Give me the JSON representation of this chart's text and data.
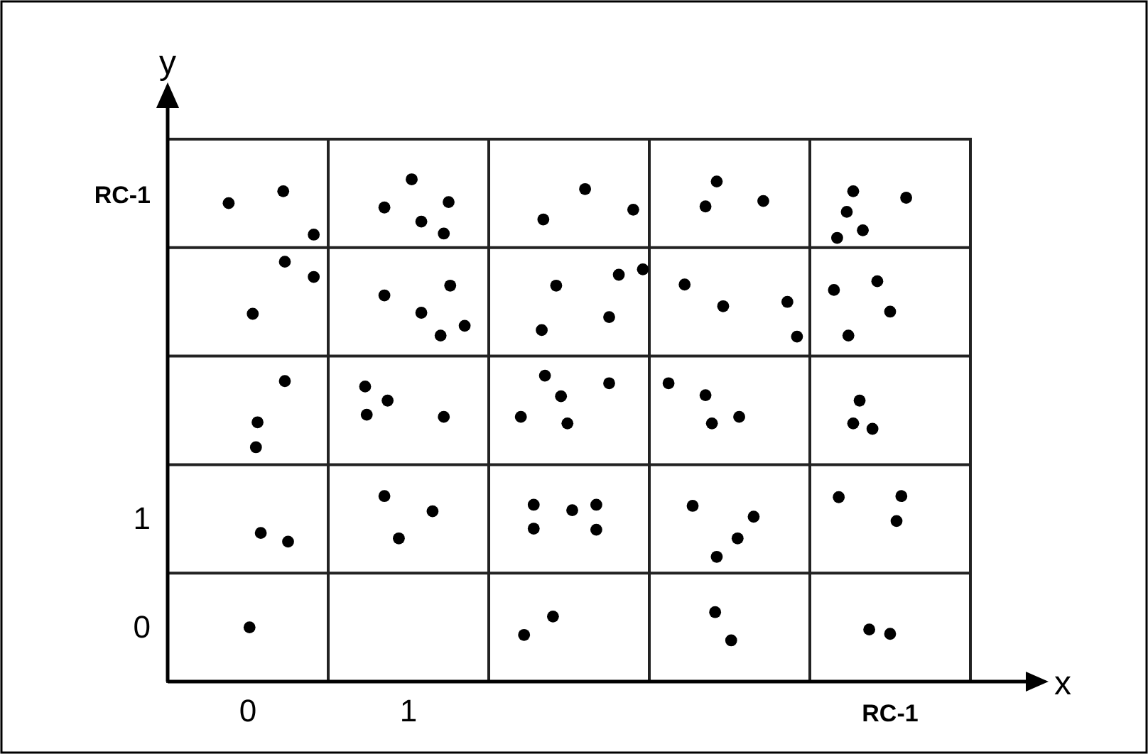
{
  "chart_data": {
    "type": "scatter",
    "xlabel": "x",
    "ylabel": "y",
    "xlim": [
      -0.5,
      4.5
    ],
    "ylim": [
      -0.5,
      4.5
    ],
    "xticks": [
      0,
      {
        "value": 0.5,
        "label": null
      },
      1,
      {
        "value": 1.5,
        "label": null
      },
      {
        "value": 2.5,
        "label": null
      },
      {
        "value": 3.5,
        "label": null
      },
      {
        "value": 4,
        "label": "RC-1"
      }
    ],
    "yticks": [
      0,
      {
        "value": 0.5,
        "label": null
      },
      1,
      {
        "value": 1.5,
        "label": null
      },
      {
        "value": 2.5,
        "label": null
      },
      {
        "value": 3.5,
        "label": null
      },
      {
        "value": 4,
        "label": "RC-1"
      }
    ],
    "grid": true,
    "marker": "circle",
    "series": [
      {
        "color": "#000000",
        "x": [
          -0.12,
          0.22,
          0.41,
          0.85,
          1.02,
          1.25,
          1.08,
          1.22,
          1.84,
          2.1,
          2.4,
          2.85,
          2.92,
          3.21,
          3.77,
          3.73,
          3.83,
          3.67,
          4.1,
          0.23,
          0.41,
          0.03,
          0.85,
          1.26,
          1.08,
          1.2,
          1.35,
          1.92,
          1.83,
          2.31,
          2.46,
          2.25,
          2.72,
          2.96,
          3.36,
          3.42,
          3.65,
          3.92,
          4.0,
          3.74,
          0.23,
          0.06,
          0.05,
          0.73,
          0.87,
          0.74,
          1.22,
          1.85,
          1.95,
          1.7,
          1.99,
          2.25,
          2.62,
          2.85,
          3.06,
          2.89,
          3.81,
          3.77,
          3.89,
          0.08,
          0.25,
          0.85,
          1.15,
          0.94,
          1.78,
          1.78,
          2.02,
          2.17,
          2.17,
          2.77,
          3.15,
          3.05,
          2.92,
          3.68,
          4.07,
          4.04,
          0.01,
          1.72,
          1.9,
          2.91,
          3.01,
          3.87,
          4.0
        ],
        "values": [
          3.91,
          4.02,
          3.62,
          3.87,
          4.13,
          3.92,
          3.74,
          3.63,
          3.76,
          4.04,
          3.85,
          3.88,
          4.11,
          3.93,
          4.02,
          3.83,
          3.66,
          3.59,
          3.96,
          3.37,
          3.23,
          2.89,
          3.06,
          3.15,
          2.9,
          2.69,
          2.78,
          3.15,
          2.74,
          3.25,
          3.3,
          2.86,
          3.16,
          2.96,
          3.0,
          2.68,
          3.11,
          3.19,
          2.91,
          2.69,
          2.27,
          1.89,
          1.66,
          2.22,
          2.09,
          1.96,
          1.94,
          2.32,
          2.13,
          1.94,
          1.88,
          2.25,
          2.25,
          2.14,
          1.94,
          1.88,
          2.09,
          1.88,
          1.83,
          0.87,
          0.79,
          1.21,
          1.07,
          0.82,
          1.13,
          0.91,
          1.08,
          1.13,
          0.9,
          1.12,
          1.02,
          0.82,
          0.65,
          1.2,
          1.21,
          0.98,
          0.0,
          -0.07,
          0.1,
          0.14,
          -0.12,
          -0.02,
          -0.06
        ]
      }
    ]
  }
}
